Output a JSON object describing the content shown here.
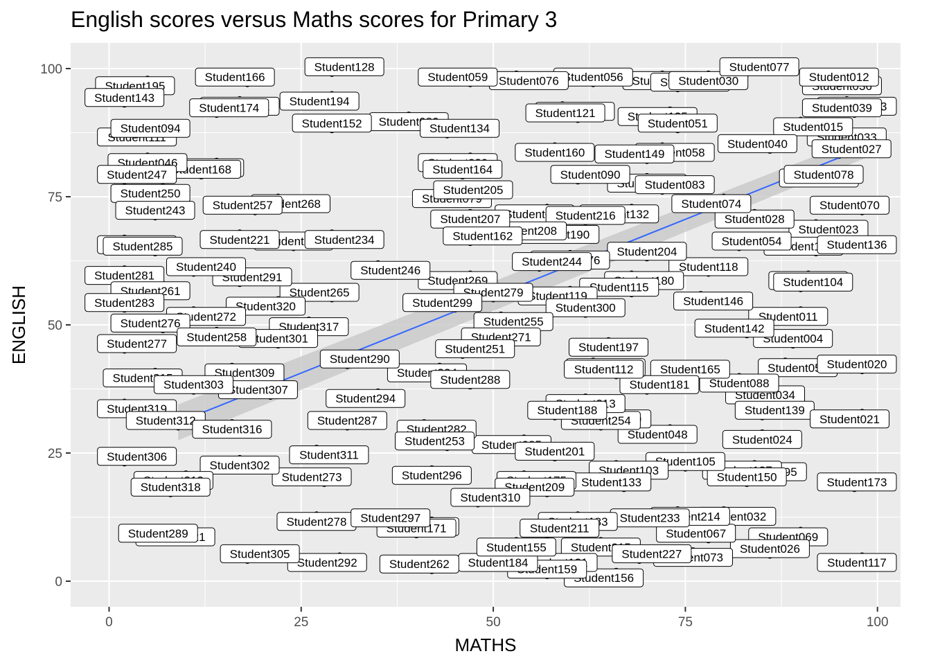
{
  "chart_data": {
    "type": "scatter",
    "title": "English scores versus Maths scores for Primary 3",
    "xlabel": "MATHS",
    "ylabel": "ENGLISH",
    "xlim": [
      -5,
      103
    ],
    "ylim": [
      -5,
      105
    ],
    "x_ticks": [
      0,
      25,
      50,
      75,
      100
    ],
    "y_ticks": [
      0,
      25,
      50,
      75,
      100
    ],
    "grid": true,
    "legend": "none",
    "colors": {
      "panel_background": "#ebebeb",
      "grid": "#ffffff",
      "point": "#000000",
      "trend_line": "#3366ff",
      "confidence_band": "#c8c8c8",
      "label_fill": "#ffffff",
      "label_border": "#000000"
    },
    "trend_line": {
      "method": "linear",
      "start": [
        9,
        31
      ],
      "end": [
        99,
        85
      ]
    },
    "points": [
      {
        "label": "Student036",
        "x": 97,
        "y": 98
      },
      {
        "label": "Student012",
        "x": 95,
        "y": 97
      },
      {
        "label": "Student013",
        "x": 96,
        "y": 94
      },
      {
        "label": "Student039",
        "x": 97,
        "y": 91
      },
      {
        "label": "Student033",
        "x": 96,
        "y": 88
      },
      {
        "label": "Student027",
        "x": 95,
        "y": 83
      },
      {
        "label": "Student066",
        "x": 94,
        "y": 80
      },
      {
        "label": "Student078",
        "x": 93,
        "y": 78
      },
      {
        "label": "Student023",
        "x": 92,
        "y": 70
      },
      {
        "label": "Student107",
        "x": 92,
        "y": 64
      },
      {
        "label": "Student065",
        "x": 91,
        "y": 60
      },
      {
        "label": "Student104",
        "x": 90,
        "y": 57
      },
      {
        "label": "Student011",
        "x": 90,
        "y": 53
      },
      {
        "label": "Student004",
        "x": 89,
        "y": 46
      },
      {
        "label": "Student055",
        "x": 88,
        "y": 43
      },
      {
        "label": "Student034",
        "x": 87,
        "y": 35
      },
      {
        "label": "Student024",
        "x": 85,
        "y": 29
      },
      {
        "label": "Student095",
        "x": 84,
        "y": 20
      },
      {
        "label": "Student069",
        "x": 90,
        "y": 10
      },
      {
        "label": "Student026",
        "x": 86,
        "y": 5
      },
      {
        "label": "Student015",
        "x": 90,
        "y": 90
      },
      {
        "label": "Student040",
        "x": 86,
        "y": 84
      },
      {
        "label": "Student028",
        "x": 84,
        "y": 72
      },
      {
        "label": "Student054",
        "x": 82,
        "y": 65
      },
      {
        "label": "Student074",
        "x": 80,
        "y": 75
      },
      {
        "label": "Student118",
        "x": 78,
        "y": 60
      },
      {
        "label": "Student146",
        "x": 77,
        "y": 56
      },
      {
        "label": "Student142",
        "x": 83,
        "y": 48
      },
      {
        "label": "Student088",
        "x": 82,
        "y": 40
      },
      {
        "label": "Student139",
        "x": 85,
        "y": 32
      },
      {
        "label": "Student137",
        "x": 84,
        "y": 23
      },
      {
        "label": "Student150",
        "x": 83,
        "y": 19
      },
      {
        "label": "Student032",
        "x": 80,
        "y": 14
      },
      {
        "label": "Student067",
        "x": 78,
        "y": 8
      },
      {
        "label": "Student073",
        "x": 76,
        "y": 6
      },
      {
        "label": "Student165",
        "x": 74,
        "y": 40
      },
      {
        "label": "Student048",
        "x": 73,
        "y": 30
      },
      {
        "label": "Student105",
        "x": 75,
        "y": 22
      },
      {
        "label": "Student214",
        "x": 74,
        "y": 14
      },
      {
        "label": "Student233",
        "x": 72,
        "y": 11
      },
      {
        "label": "Student017",
        "x": 72,
        "y": 99
      },
      {
        "label": "Student022",
        "x": 74,
        "y": 96
      },
      {
        "label": "Student135",
        "x": 73,
        "y": 92
      },
      {
        "label": "Student051",
        "x": 74,
        "y": 88
      },
      {
        "label": "Student058",
        "x": 72,
        "y": 85
      },
      {
        "label": "Student149",
        "x": 70,
        "y": 82
      },
      {
        "label": "Student006",
        "x": 70,
        "y": 79
      },
      {
        "label": "Student083",
        "x": 72,
        "y": 76
      },
      {
        "label": "Student132",
        "x": 68,
        "y": 73
      },
      {
        "label": "Student204",
        "x": 70,
        "y": 63
      },
      {
        "label": "Student180",
        "x": 68,
        "y": 60
      },
      {
        "label": "Student115",
        "x": 68,
        "y": 56
      },
      {
        "label": "Student197",
        "x": 65,
        "y": 47
      },
      {
        "label": "Student181",
        "x": 70,
        "y": 37
      },
      {
        "label": "Student210",
        "x": 67,
        "y": 33
      },
      {
        "label": "Student254",
        "x": 64,
        "y": 30
      },
      {
        "label": "Student103",
        "x": 66,
        "y": 23
      },
      {
        "label": "Student133",
        "x": 67,
        "y": 18
      },
      {
        "label": "Student215",
        "x": 64,
        "y": 8
      },
      {
        "label": "Student227",
        "x": 69,
        "y": 4
      },
      {
        "label": "Student156",
        "x": 66,
        "y": 2
      },
      {
        "label": "Student056",
        "x": 63,
        "y": 97
      },
      {
        "label": "Student075",
        "x": 59,
        "y": 93
      },
      {
        "label": "Student121",
        "x": 61,
        "y": 90
      },
      {
        "label": "Student160",
        "x": 58,
        "y": 85
      },
      {
        "label": "Student090",
        "x": 61,
        "y": 78
      },
      {
        "label": "Student096",
        "x": 57,
        "y": 73
      },
      {
        "label": "Student216",
        "x": 62,
        "y": 70
      },
      {
        "label": "Student190",
        "x": 57,
        "y": 69
      },
      {
        "label": "Student208",
        "x": 56,
        "y": 67
      },
      {
        "label": "Student176",
        "x": 60,
        "y": 64
      },
      {
        "label": "Student244",
        "x": 56,
        "y": 61
      },
      {
        "label": "Student119",
        "x": 60,
        "y": 57
      },
      {
        "label": "Student300",
        "x": 62,
        "y": 52
      },
      {
        "label": "Student263",
        "x": 63,
        "y": 43
      },
      {
        "label": "Student112",
        "x": 66,
        "y": 40
      },
      {
        "label": "Student213",
        "x": 62,
        "y": 36
      },
      {
        "label": "Student188",
        "x": 58,
        "y": 32
      },
      {
        "label": "Student085",
        "x": 54,
        "y": 28
      },
      {
        "label": "Student201",
        "x": 58,
        "y": 24
      },
      {
        "label": "Student175",
        "x": 54,
        "y": 21
      },
      {
        "label": "Student209",
        "x": 57,
        "y": 17
      },
      {
        "label": "Student183",
        "x": 61,
        "y": 13
      },
      {
        "label": "Student211",
        "x": 57,
        "y": 9
      },
      {
        "label": "Student131",
        "x": 60,
        "y": 5
      },
      {
        "label": "Student159",
        "x": 57,
        "y": 1
      },
      {
        "label": "Student076",
        "x": 53,
        "y": 99
      },
      {
        "label": "Student059",
        "x": 47,
        "y": 97
      },
      {
        "label": "Student080",
        "x": 39,
        "y": 91
      },
      {
        "label": "Student134",
        "x": 44,
        "y": 87
      },
      {
        "label": "Student239",
        "x": 47,
        "y": 83
      },
      {
        "label": "Student164",
        "x": 46,
        "y": 79
      },
      {
        "label": "Student079",
        "x": 43,
        "y": 76
      },
      {
        "label": "Student205",
        "x": 49,
        "y": 75
      },
      {
        "label": "Student207",
        "x": 47,
        "y": 72
      },
      {
        "label": "Student162",
        "x": 47,
        "y": 66
      },
      {
        "label": "Student269",
        "x": 47,
        "y": 60
      },
      {
        "label": "Student279",
        "x": 50,
        "y": 55
      },
      {
        "label": "Student255",
        "x": 51,
        "y": 52
      },
      {
        "label": "Student299",
        "x": 45,
        "y": 53
      },
      {
        "label": "Student271",
        "x": 51,
        "y": 49
      },
      {
        "label": "Student251",
        "x": 46,
        "y": 44
      },
      {
        "label": "Student324",
        "x": 43,
        "y": 42
      },
      {
        "label": "Student288",
        "x": 47,
        "y": 38
      },
      {
        "label": "Student282",
        "x": 41,
        "y": 31
      },
      {
        "label": "Student253",
        "x": 44,
        "y": 26
      },
      {
        "label": "Student296",
        "x": 42,
        "y": 22
      },
      {
        "label": "Student310",
        "x": 48,
        "y": 15
      },
      {
        "label": "Student322",
        "x": 42,
        "y": 12
      },
      {
        "label": "Student171",
        "x": 40,
        "y": 9
      },
      {
        "label": "Student184",
        "x": 49,
        "y": 5
      },
      {
        "label": "Student262",
        "x": 42,
        "y": 2
      },
      {
        "label": "Student155",
        "x": 53,
        "y": 8
      },
      {
        "label": "Student128",
        "x": 29,
        "y": 99
      },
      {
        "label": "Student194",
        "x": 29,
        "y": 95
      },
      {
        "label": "Student152",
        "x": 29,
        "y": 88
      },
      {
        "label": "Student246",
        "x": 35,
        "y": 62
      },
      {
        "label": "Student265",
        "x": 29,
        "y": 55
      },
      {
        "label": "Student317",
        "x": 26,
        "y": 51
      },
      {
        "label": "Student290",
        "x": 31,
        "y": 42
      },
      {
        "label": "Student294",
        "x": 35,
        "y": 37
      },
      {
        "label": "Student287",
        "x": 31,
        "y": 30
      },
      {
        "label": "Student311",
        "x": 27,
        "y": 26
      },
      {
        "label": "Student273",
        "x": 28,
        "y": 19
      },
      {
        "label": "Student278",
        "x": 27,
        "y": 13
      },
      {
        "label": "Student297",
        "x": 35,
        "y": 11
      },
      {
        "label": "Student292",
        "x": 30,
        "y": 5
      },
      {
        "label": "Student252",
        "x": 24,
        "y": 65
      },
      {
        "label": "Student234",
        "x": 29,
        "y": 68
      },
      {
        "label": "Student166",
        "x": 18,
        "y": 97
      },
      {
        "label": "Student101",
        "x": 17,
        "y": 94
      },
      {
        "label": "Student174",
        "x": 14,
        "y": 91
      },
      {
        "label": "Student169",
        "x": 14,
        "y": 82
      },
      {
        "label": "Student168",
        "x": 12,
        "y": 79
      },
      {
        "label": "Student268",
        "x": 22,
        "y": 75
      },
      {
        "label": "Student257",
        "x": 19,
        "y": 72
      },
      {
        "label": "Student221",
        "x": 17,
        "y": 68
      },
      {
        "label": "Student291",
        "x": 17,
        "y": 58
      },
      {
        "label": "Student320",
        "x": 22,
        "y": 55
      },
      {
        "label": "Student301",
        "x": 22,
        "y": 46
      },
      {
        "label": "Student309",
        "x": 16,
        "y": 42
      },
      {
        "label": "Student307",
        "x": 21,
        "y": 36
      },
      {
        "label": "Student302",
        "x": 17,
        "y": 24
      },
      {
        "label": "Student305",
        "x": 18,
        "y": 4
      },
      {
        "label": "Student195",
        "x": 5,
        "y": 98
      },
      {
        "label": "Student143",
        "x": 2,
        "y": 93
      },
      {
        "label": "Student111",
        "x": 2,
        "y": 88
      },
      {
        "label": "Student094",
        "x": 7,
        "y": 87
      },
      {
        "label": "Student046",
        "x": 5,
        "y": 83
      },
      {
        "label": "Student247",
        "x": 2,
        "y": 78
      },
      {
        "label": "Student250",
        "x": 7,
        "y": 77
      },
      {
        "label": "Student243",
        "x": 6,
        "y": 71
      },
      {
        "label": "Student235",
        "x": 2,
        "y": 67
      },
      {
        "label": "Student285",
        "x": 6,
        "y": 64
      },
      {
        "label": "Student281",
        "x": 2,
        "y": 61
      },
      {
        "label": "Student240",
        "x": 11,
        "y": 60
      },
      {
        "label": "Student261",
        "x": 7,
        "y": 58
      },
      {
        "label": "Student283",
        "x": 2,
        "y": 53
      },
      {
        "label": "Student272",
        "x": 11,
        "y": 53
      },
      {
        "label": "Student276",
        "x": 7,
        "y": 49
      },
      {
        "label": "Student258",
        "x": 14,
        "y": 49
      },
      {
        "label": "Student277",
        "x": 2,
        "y": 45
      },
      {
        "label": "Student315",
        "x": 6,
        "y": 41
      },
      {
        "label": "Student303",
        "x": 11,
        "y": 37
      },
      {
        "label": "Student319",
        "x": 2,
        "y": 35
      },
      {
        "label": "Student312",
        "x": 9,
        "y": 30
      },
      {
        "label": "Student316",
        "x": 16,
        "y": 31
      },
      {
        "label": "Student306",
        "x": 2,
        "y": 23
      },
      {
        "label": "Student313",
        "x": 10,
        "y": 21
      },
      {
        "label": "Student318",
        "x": 8,
        "y": 17
      },
      {
        "label": "Student321",
        "x": 7,
        "y": 10
      },
      {
        "label": "Student289",
        "x": 8,
        "y": 8
      },
      {
        "label": "Student117",
        "x": 98,
        "y": 5
      },
      {
        "label": "Student173",
        "x": 97,
        "y": 18
      },
      {
        "label": "Student021",
        "x": 98,
        "y": 33
      },
      {
        "label": "Student020",
        "x": 98,
        "y": 41
      },
      {
        "label": "Student136",
        "x": 98,
        "y": 67
      },
      {
        "label": "Student070",
        "x": 98,
        "y": 72
      },
      {
        "label": "Student030",
        "x": 78,
        "y": 99
      },
      {
        "label": "Student077",
        "x": 83,
        "y": 99
      }
    ]
  }
}
